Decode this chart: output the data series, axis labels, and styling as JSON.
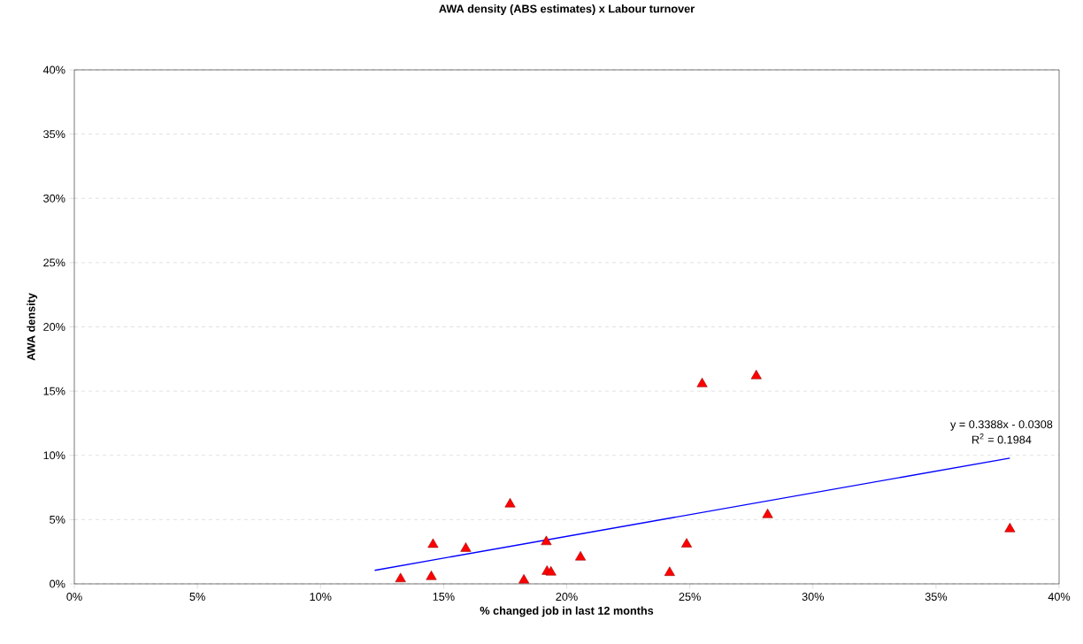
{
  "chart_data": {
    "type": "scatter",
    "title": "AWA density (ABS estimates) x Labour turnover",
    "xlabel": "% changed job in last 12 months",
    "ylabel": "AWA  density",
    "series": [
      {
        "type": "scatter",
        "color": "#ff0000",
        "marker": "triangle",
        "x": [
          13.25,
          14.5,
          14.57,
          15.9,
          17.7,
          18.26,
          19.17,
          19.2,
          19.36,
          20.56,
          24.18,
          24.87,
          25.5,
          27.7,
          28.16,
          38.0
        ],
        "values": [
          0.38,
          0.55,
          3.06,
          2.75,
          6.2,
          0.28,
          3.27,
          0.96,
          0.9,
          2.07,
          0.87,
          3.08,
          15.56,
          16.18,
          5.37,
          4.27
        ]
      },
      {
        "type": "line",
        "color": "#0000ff",
        "marker": "none",
        "line_style": "solid",
        "x": [
          12.2,
          38.0
        ],
        "values": [
          1.05,
          9.79
        ]
      }
    ],
    "xlim": [
      0,
      40
    ],
    "ylim": [
      0,
      40
    ],
    "xticks": [
      {
        "value": 0,
        "label": "0%"
      },
      {
        "value": 5,
        "label": "5%"
      },
      {
        "value": 10,
        "label": "10%"
      },
      {
        "value": 15,
        "label": "15%"
      },
      {
        "value": 20,
        "label": "20%"
      },
      {
        "value": 25,
        "label": "25%"
      },
      {
        "value": 30,
        "label": "30%"
      },
      {
        "value": 35,
        "label": "35%"
      },
      {
        "value": 40,
        "label": "40%"
      }
    ],
    "yticks": [
      {
        "value": 0,
        "label": "0%"
      },
      {
        "value": 5,
        "label": "5%"
      },
      {
        "value": 10,
        "label": "10%"
      },
      {
        "value": 15,
        "label": "15%"
      },
      {
        "value": 20,
        "label": "20%"
      },
      {
        "value": 25,
        "label": "25%"
      },
      {
        "value": 30,
        "label": "30%"
      },
      {
        "value": 35,
        "label": "35%"
      },
      {
        "value": 40,
        "label": "40%"
      }
    ],
    "grid": "y",
    "annotations": [
      "y = 0.3388x - 0.0308",
      "R$^{2}$ = 0.1984"
    ]
  }
}
